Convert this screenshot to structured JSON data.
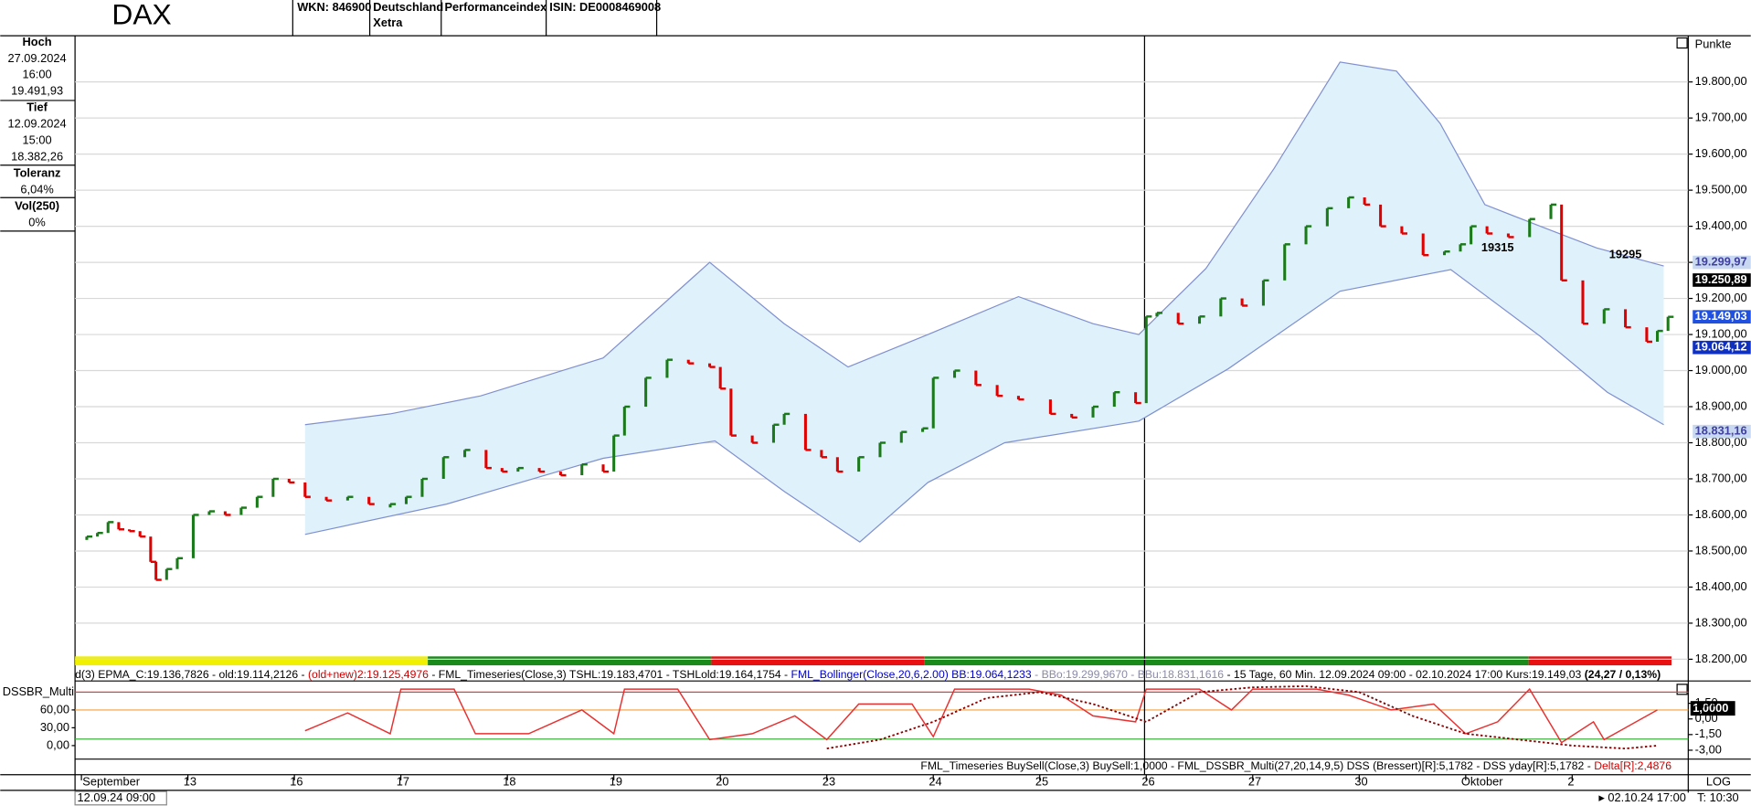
{
  "header": {
    "title": "DAX",
    "wkn": "WKN: 846900",
    "exchange": [
      "Deutschland",
      "Xetra"
    ],
    "kind": "Performanceindex",
    "isin": "ISIN: DE0008469008"
  },
  "info_panel": [
    [
      "Hoch",
      "27.09.2024",
      "16:00",
      "19.491,93"
    ],
    [
      "Tief",
      "12.09.2024",
      "15:00",
      "18.382,26"
    ],
    [
      "Toleranz",
      "6,04%"
    ],
    [
      "Vol(250)",
      "0%"
    ]
  ],
  "unit": "Punkte",
  "info_line": [
    {
      "text": "d(3) EPMA_C:19.136,7826 - old:19.114,2126 - ",
      "color": "#000"
    },
    {
      "text": "(old+new)2:19.125,4976",
      "color": "#d00000"
    },
    {
      "text": " - FML_Timeseries(Close,3) TSHL:19.183,4701 - TSHLold:19.164,1754 - ",
      "color": "#000"
    },
    {
      "text": "FML_Bollinger(Close,20,6,2.00) BB:19.064,1233",
      "color": "#0000d0"
    },
    {
      "text": " - BBo:19.299,9670 - BBu:18.831,1616",
      "color": "#8a8aa8"
    },
    {
      "text": " - 15 Tage, 60 Min. 12.09.2024 09:00 - 02.10.2024 17:00  Kurs:19.149,03 ",
      "color": "#000"
    },
    {
      "text": "(24,27 / 0,13%)",
      "color": "#000",
      "bold": true
    }
  ],
  "osc_info_line": [
    {
      "text": "FML_Timeseries BuySell(Close,3) BuySell:1,0000 - FML_DSSBR_Multi(27,20,14,9,5) DSS (Bressert)[R]:5,1782 - DSS yday[R]:5,1782 - ",
      "color": "#000"
    },
    {
      "text": "Delta[R]:2,4876",
      "color": "#d00000"
    }
  ],
  "footer": {
    "start": "12.09.24 09:00",
    "end": "▸ 02.10.24 17:00",
    "scale": "LOG",
    "time": "T: 10:30"
  },
  "chart_data": [
    {
      "type": "ohlc",
      "xlim": [
        -0.06,
        15.09
      ],
      "ylim": [
        18180,
        19925
      ],
      "grid": true,
      "up_color": "#1a7a1a",
      "down_color": "#e00000",
      "xticks": [
        {
          "value": 0,
          "label": "September"
        },
        {
          "value": 1,
          "label": "13"
        },
        {
          "value": 2,
          "label": "16"
        },
        {
          "value": 3,
          "label": "17"
        },
        {
          "value": 4,
          "label": "18"
        },
        {
          "value": 5,
          "label": "19"
        },
        {
          "value": 6,
          "label": "20"
        },
        {
          "value": 7,
          "label": "23"
        },
        {
          "value": 8,
          "label": "24"
        },
        {
          "value": 9,
          "label": "25"
        },
        {
          "value": 10,
          "label": "26"
        },
        {
          "value": 11,
          "label": "27"
        },
        {
          "value": 12,
          "label": "30"
        },
        {
          "value": 13,
          "label": "Oktober"
        },
        {
          "value": 14,
          "label": "2"
        }
      ],
      "yticks": [
        {
          "value": 18200,
          "label": "18.200,00"
        },
        {
          "value": 18300,
          "label": "18.300,00"
        },
        {
          "value": 18400,
          "label": "18.400,00"
        },
        {
          "value": 18500,
          "label": "18.500,00"
        },
        {
          "value": 18600,
          "label": "18.600,00"
        },
        {
          "value": 18700,
          "label": "18.700,00"
        },
        {
          "value": 18800,
          "label": "18.800,00"
        },
        {
          "value": 18900,
          "label": "18.900,00"
        },
        {
          "value": 19000,
          "label": "19.000,00"
        },
        {
          "value": 19100,
          "label": "19.100,00"
        },
        {
          "value": 19200,
          "label": "19.200,00"
        },
        {
          "value": 19300,
          "label": "19.300,00"
        },
        {
          "value": 19400,
          "label": "19.400,00"
        },
        {
          "value": 19500,
          "label": "19.500,00"
        },
        {
          "value": 19600,
          "label": "19.600,00"
        },
        {
          "value": 19700,
          "label": "19.700,00"
        },
        {
          "value": 19800,
          "label": "19.800,00"
        }
      ],
      "x": [
        0.05,
        0.15,
        0.25,
        0.35,
        0.45,
        0.55,
        0.65,
        0.7,
        0.8,
        0.9,
        1.05,
        1.2,
        1.35,
        1.5,
        1.65,
        1.8,
        1.95,
        2.1,
        2.3,
        2.5,
        2.7,
        2.9,
        3.05,
        3.2,
        3.4,
        3.6,
        3.8,
        3.95,
        4.1,
        4.3,
        4.5,
        4.7,
        4.9,
        5.0,
        5.1,
        5.3,
        5.5,
        5.7,
        5.9,
        6.0,
        6.1,
        6.3,
        6.5,
        6.6,
        6.8,
        6.95,
        7.1,
        7.3,
        7.5,
        7.7,
        7.9,
        8.0,
        8.2,
        8.4,
        8.6,
        8.8,
        9.1,
        9.3,
        9.5,
        9.7,
        9.9,
        10.0,
        10.1,
        10.3,
        10.5,
        10.7,
        10.9,
        11.1,
        11.3,
        11.5,
        11.7,
        11.9,
        12.05,
        12.2,
        12.4,
        12.6,
        12.8,
        12.95,
        13.05,
        13.2,
        13.4,
        13.6,
        13.8,
        13.9,
        14.1,
        14.3,
        14.5,
        14.7,
        14.8,
        14.9
      ],
      "close": [
        18540,
        18550,
        18580,
        18560,
        18555,
        18540,
        18470,
        18420,
        18450,
        18480,
        18600,
        18610,
        18600,
        18620,
        18650,
        18700,
        18690,
        18650,
        18640,
        18650,
        18630,
        18630,
        18650,
        18700,
        18760,
        18780,
        18730,
        18720,
        18730,
        18720,
        18710,
        18740,
        18720,
        18820,
        18900,
        18980,
        19030,
        19020,
        19010,
        18950,
        18820,
        18800,
        18850,
        18880,
        18780,
        18760,
        18720,
        18760,
        18800,
        18830,
        18840,
        18980,
        19000,
        18960,
        18930,
        18920,
        18880,
        18870,
        18900,
        18940,
        18910,
        19150,
        19160,
        19130,
        19150,
        19200,
        19180,
        19250,
        19350,
        19400,
        19450,
        19480,
        19460,
        19400,
        19380,
        19320,
        19330,
        19350,
        19400,
        19380,
        19370,
        19420,
        19460,
        19250,
        19130,
        19170,
        19120,
        19080,
        19110,
        19149.03
      ],
      "bands": [
        {
          "color": "#8090d0",
          "x": [
            2.1,
            2.9,
            3.75,
            4.9,
            5.9,
            6.6,
            7.2,
            7.95,
            8.8,
            9.5,
            9.93,
            10.56,
            11.2,
            11.82,
            12.35,
            12.76,
            13.18,
            13.7,
            14.23,
            14.86
          ],
          "values": [
            18850,
            18880,
            18930,
            19035,
            19300,
            19130,
            19010,
            19100,
            19205,
            19130,
            19100,
            19283,
            19560,
            19855,
            19830,
            19685,
            19460,
            19400,
            19340,
            19290
          ]
        },
        {
          "color": "#8090d0",
          "x": [
            2.1,
            3.43,
            4.9,
            5.95,
            6.6,
            7.31,
            7.95,
            8.67,
            9.93,
            10.77,
            11.82,
            12.86,
            13.7,
            14.33,
            14.86
          ],
          "values": [
            18546,
            18630,
            18757,
            18805,
            18665,
            18525,
            18690,
            18800,
            18860,
            19005,
            19220,
            19280,
            19095,
            18940,
            18850
          ]
        }
      ],
      "band_fill": "#dff2fb",
      "annotations": [
        {
          "x": 14.5,
          "value": 19295
        },
        {
          "x": 13.3,
          "value": 19315
        }
      ],
      "last_values": [
        {
          "value": 19299.97,
          "label": "19.299,97",
          "bg": "#c8d8f0",
          "fg": "#4040a0"
        },
        {
          "value": 19250.89,
          "label": "19.250,89",
          "bg": "#000000",
          "fg": "#ffffff"
        },
        {
          "value": 19149.03,
          "label": "19.149,03",
          "bg": "#2050e0",
          "fg": "#ffffff"
        },
        {
          "value": 19064.12,
          "label": "19.064,12",
          "bg": "#1030c0",
          "fg": "#ffffff"
        },
        {
          "value": 18831.16,
          "label": "18.831,16",
          "bg": "#c8d8f0",
          "fg": "#4040a0"
        }
      ]
    },
    {
      "type": "line",
      "title": "DSSBR_Multi",
      "xlim": [
        -0.06,
        15.09
      ],
      "ylim": [
        -19,
        105
      ],
      "y2lim": [
        -3.64,
        3.43
      ],
      "yticks": [
        {
          "value": 0,
          "label": "0,00"
        },
        {
          "value": 30,
          "label": "30,00"
        },
        {
          "value": 60,
          "label": "60,00"
        }
      ],
      "y2ticks": [
        {
          "value": 1.5,
          "label": "1,50"
        },
        {
          "value": 0,
          "label": "0,00"
        },
        {
          "value": -1.5,
          "label": "-1,50"
        },
        {
          "value": -3,
          "label": "-3,00"
        }
      ],
      "last_value_label": "1,0000",
      "series": [
        {
          "color": "#e83030",
          "x": [
            2.1,
            2.5,
            2.9,
            3.0,
            3.5,
            3.7,
            4.2,
            4.7,
            5.0,
            5.1,
            5.6,
            5.9,
            6.3,
            6.7,
            7.0,
            7.3,
            7.8,
            8.0,
            8.2,
            8.9,
            9.2,
            9.5,
            9.9,
            10.0,
            10.5,
            10.8,
            11.0,
            11.6,
            11.9,
            12.3,
            12.7,
            13.0,
            13.3,
            13.6,
            13.9,
            14.2,
            14.3,
            14.8
          ],
          "values": [
            25,
            55,
            20,
            95,
            95,
            20,
            20,
            60,
            20,
            95,
            95,
            10,
            20,
            50,
            10,
            70,
            70,
            15,
            95,
            95,
            85,
            50,
            40,
            95,
            95,
            60,
            95,
            95,
            85,
            60,
            70,
            20,
            40,
            95,
            5,
            40,
            10,
            60
          ]
        },
        {
          "color": "#8b0000",
          "dotted": true,
          "x": [
            7.0,
            7.5,
            8.0,
            8.5,
            9.0,
            9.5,
            10.0,
            10.5,
            11.0,
            11.5,
            12.0,
            12.5,
            13.0,
            13.5,
            14.0,
            14.5,
            14.8
          ],
          "values": [
            -5,
            10,
            40,
            80,
            90,
            70,
            40,
            90,
            98,
            100,
            90,
            50,
            20,
            10,
            0,
            -5,
            0
          ]
        }
      ]
    }
  ]
}
